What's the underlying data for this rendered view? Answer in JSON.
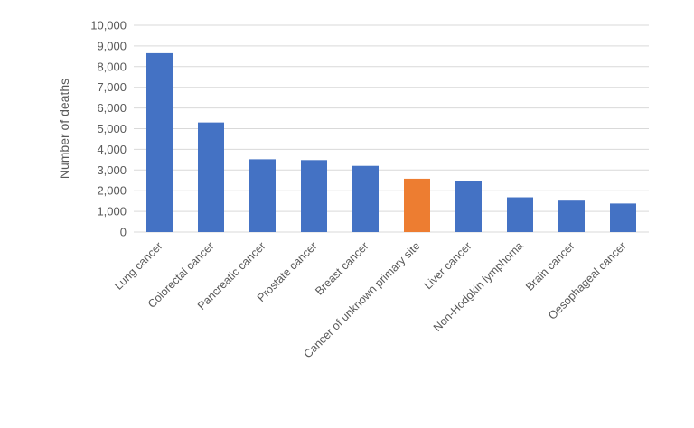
{
  "chart_data": {
    "type": "bar",
    "title": "",
    "xlabel": "",
    "ylabel": "Number of deaths",
    "ylim": [
      0,
      10000
    ],
    "yticks": [
      "0",
      "1,000",
      "2,000",
      "3,000",
      "4,000",
      "5,000",
      "6,000",
      "7,000",
      "8,000",
      "9,000",
      "10,000"
    ],
    "grid": true,
    "categories": [
      "Lung cancer",
      "Colorectal cancer",
      "Pancreatic cancer",
      "Prostate cancer",
      "Breast cancer",
      "Cancer of unknown primary site",
      "Liver cancer",
      "Non-Hodgkin lymphoma",
      "Brain cancer",
      "Oesophageal cancer"
    ],
    "values": [
      8650,
      5300,
      3520,
      3480,
      3200,
      2580,
      2470,
      1680,
      1520,
      1380
    ],
    "colors": {
      "default": "#4472c4",
      "highlight": "#ed7d31"
    },
    "highlight_category": "Cancer of unknown primary site"
  }
}
